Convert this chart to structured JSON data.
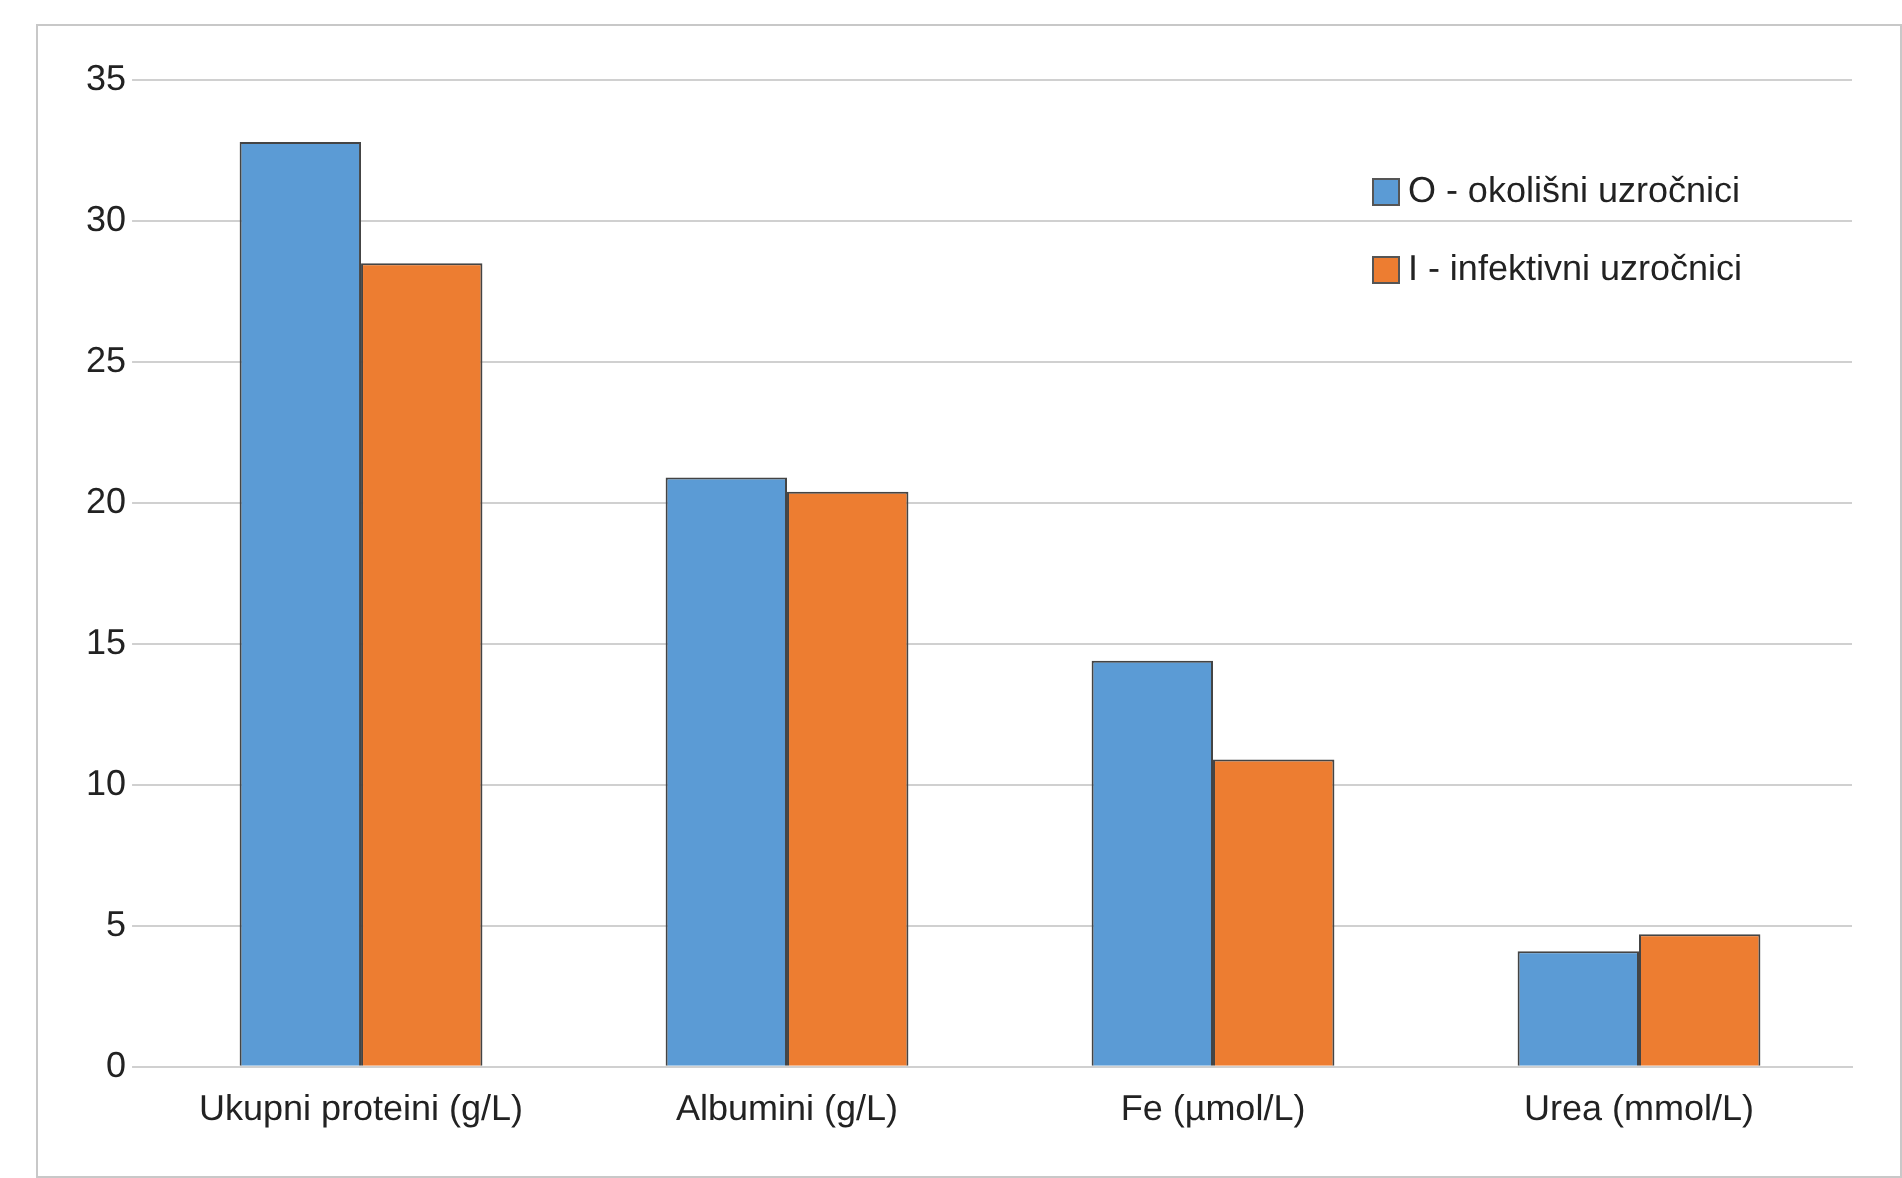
{
  "chart_data": {
    "type": "bar",
    "categories": [
      "Ukupni proteini (g/L)",
      "Albumini (g/L)",
      "Fe (µmol/L)",
      "Urea (mmol/L)"
    ],
    "series": [
      {
        "name": "O - okolišni uzročnici",
        "color": "#5b9bd5",
        "values": [
          32.8,
          20.9,
          14.4,
          4.1
        ]
      },
      {
        "name": "I - infektivni uzročnici",
        "color": "#ed7d31",
        "values": [
          28.5,
          20.4,
          10.9,
          4.7
        ]
      }
    ],
    "ylim": [
      0,
      35
    ],
    "yticks": [
      0,
      5,
      10,
      15,
      20,
      25,
      30,
      35
    ],
    "grid": "y",
    "legend": "top right"
  }
}
